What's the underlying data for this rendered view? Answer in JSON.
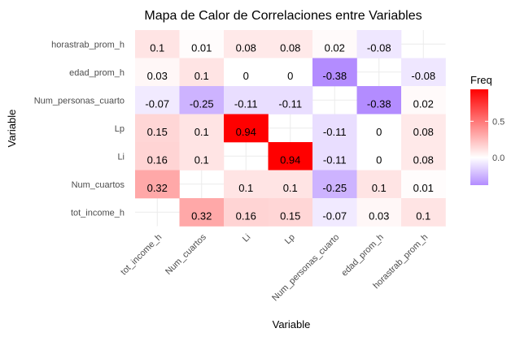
{
  "chart_data": {
    "type": "heatmap",
    "title": "Mapa de Calor de Correlaciones entre Variables",
    "xlabel": "Variable",
    "ylabel": "Variable",
    "x_categories": [
      "tot_income_h",
      "Num_cuartos",
      "Li",
      "Lp",
      "Num_personas_cuarto",
      "edad_prom_h",
      "horastrab_prom_h"
    ],
    "y_categories_top_to_bottom": [
      "horastrab_prom_h",
      "edad_prom_h",
      "Num_personas_cuarto",
      "Lp",
      "Li",
      "Num_cuartos",
      "tot_income_h"
    ],
    "cells": [
      {
        "y": "horastrab_prom_h",
        "x": "tot_income_h",
        "value": 0.1
      },
      {
        "y": "horastrab_prom_h",
        "x": "Num_cuartos",
        "value": 0.01
      },
      {
        "y": "horastrab_prom_h",
        "x": "Li",
        "value": 0.08
      },
      {
        "y": "horastrab_prom_h",
        "x": "Lp",
        "value": 0.08
      },
      {
        "y": "horastrab_prom_h",
        "x": "Num_personas_cuarto",
        "value": 0.02
      },
      {
        "y": "horastrab_prom_h",
        "x": "edad_prom_h",
        "value": -0.08
      },
      {
        "y": "edad_prom_h",
        "x": "tot_income_h",
        "value": 0.03
      },
      {
        "y": "edad_prom_h",
        "x": "Num_cuartos",
        "value": 0.1
      },
      {
        "y": "edad_prom_h",
        "x": "Li",
        "value": 0
      },
      {
        "y": "edad_prom_h",
        "x": "Lp",
        "value": 0
      },
      {
        "y": "edad_prom_h",
        "x": "Num_personas_cuarto",
        "value": -0.38
      },
      {
        "y": "edad_prom_h",
        "x": "horastrab_prom_h",
        "value": -0.08
      },
      {
        "y": "Num_personas_cuarto",
        "x": "tot_income_h",
        "value": -0.07
      },
      {
        "y": "Num_personas_cuarto",
        "x": "Num_cuartos",
        "value": -0.25
      },
      {
        "y": "Num_personas_cuarto",
        "x": "Li",
        "value": -0.11
      },
      {
        "y": "Num_personas_cuarto",
        "x": "Lp",
        "value": -0.11
      },
      {
        "y": "Num_personas_cuarto",
        "x": "edad_prom_h",
        "value": -0.38
      },
      {
        "y": "Num_personas_cuarto",
        "x": "horastrab_prom_h",
        "value": 0.02
      },
      {
        "y": "Lp",
        "x": "tot_income_h",
        "value": 0.15
      },
      {
        "y": "Lp",
        "x": "Num_cuartos",
        "value": 0.1
      },
      {
        "y": "Lp",
        "x": "Li",
        "value": 0.94
      },
      {
        "y": "Lp",
        "x": "Num_personas_cuarto",
        "value": -0.11
      },
      {
        "y": "Lp",
        "x": "edad_prom_h",
        "value": 0
      },
      {
        "y": "Lp",
        "x": "horastrab_prom_h",
        "value": 0.08
      },
      {
        "y": "Li",
        "x": "tot_income_h",
        "value": 0.16
      },
      {
        "y": "Li",
        "x": "Num_cuartos",
        "value": 0.1
      },
      {
        "y": "Li",
        "x": "Lp",
        "value": 0.94
      },
      {
        "y": "Li",
        "x": "Num_personas_cuarto",
        "value": -0.11
      },
      {
        "y": "Li",
        "x": "edad_prom_h",
        "value": 0
      },
      {
        "y": "Li",
        "x": "horastrab_prom_h",
        "value": 0.08
      },
      {
        "y": "Num_cuartos",
        "x": "tot_income_h",
        "value": 0.32
      },
      {
        "y": "Num_cuartos",
        "x": "Li",
        "value": 0.1
      },
      {
        "y": "Num_cuartos",
        "x": "Lp",
        "value": 0.1
      },
      {
        "y": "Num_cuartos",
        "x": "Num_personas_cuarto",
        "value": -0.25
      },
      {
        "y": "Num_cuartos",
        "x": "edad_prom_h",
        "value": 0.1
      },
      {
        "y": "Num_cuartos",
        "x": "horastrab_prom_h",
        "value": 0.01
      },
      {
        "y": "tot_income_h",
        "x": "Num_cuartos",
        "value": 0.32
      },
      {
        "y": "tot_income_h",
        "x": "Li",
        "value": 0.16
      },
      {
        "y": "tot_income_h",
        "x": "Lp",
        "value": 0.15
      },
      {
        "y": "tot_income_h",
        "x": "Num_personas_cuarto",
        "value": -0.07
      },
      {
        "y": "tot_income_h",
        "x": "edad_prom_h",
        "value": 0.03
      },
      {
        "y": "tot_income_h",
        "x": "horastrab_prom_h",
        "value": 0.1
      }
    ],
    "legend": {
      "title": "Freq",
      "position": "right",
      "ticks": [
        0.5,
        0.0
      ],
      "tick_labels": [
        "0.5",
        "0.0"
      ],
      "range": [
        -0.38,
        0.94
      ],
      "low_color": "#b38cff",
      "mid_color": "#ffffff",
      "high_color": "#ff0000"
    },
    "grid": true
  }
}
